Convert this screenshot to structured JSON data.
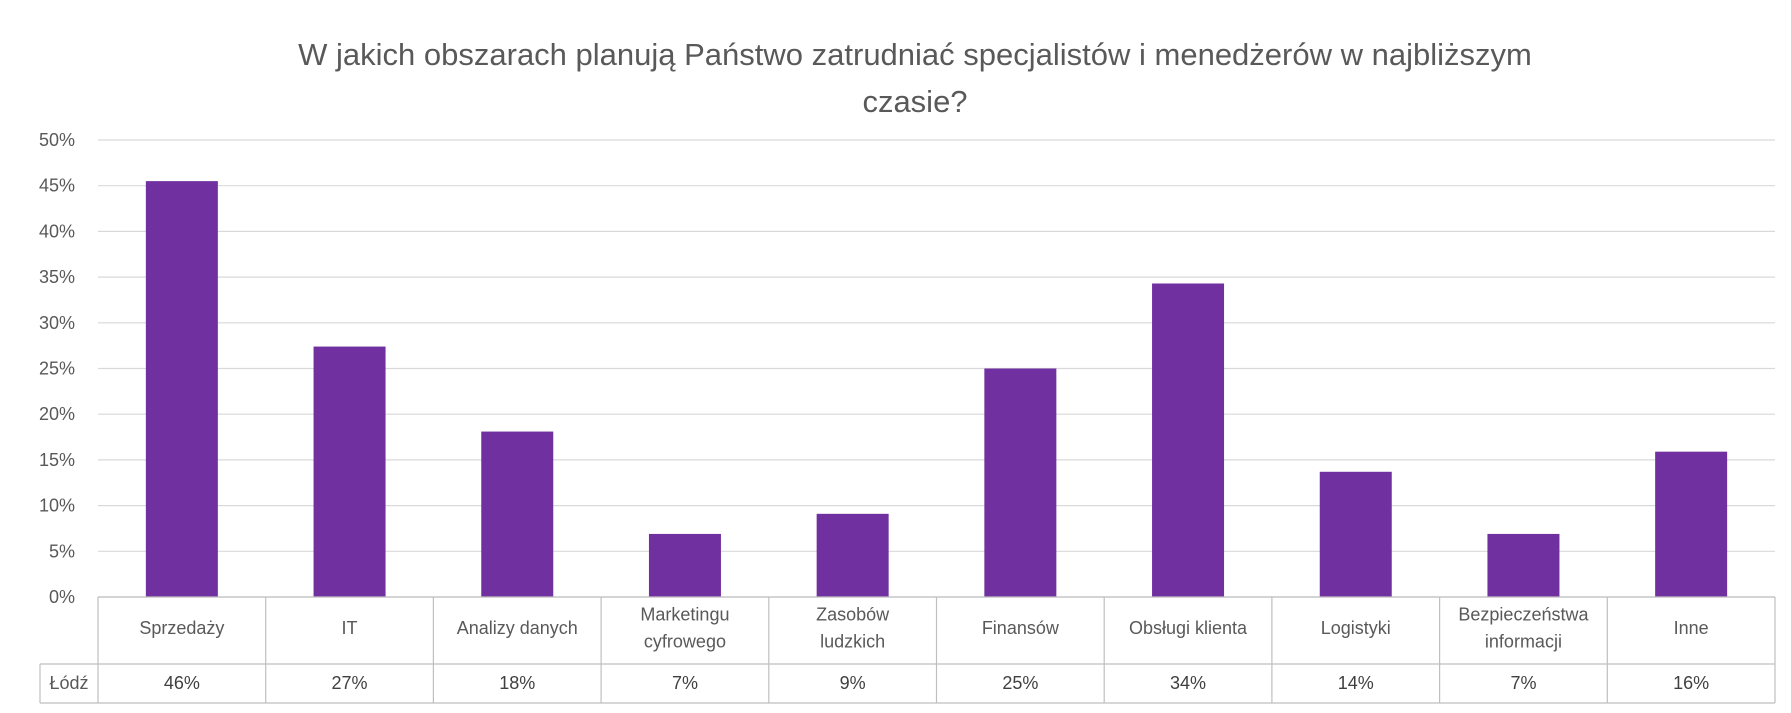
{
  "chart_data": {
    "type": "bar",
    "title_lines": [
      "W jakich obszarach planują Państwo zatrudniać specjalistów i menedżerów w najbliższym",
      "czasie?"
    ],
    "categories": [
      [
        "Sprzedaży"
      ],
      [
        "IT"
      ],
      [
        "Analizy danych"
      ],
      [
        "Marketingu",
        "cyfrowego"
      ],
      [
        "Zasobów",
        "ludzkich"
      ],
      [
        "Finansów"
      ],
      [
        "Obsługi klienta"
      ],
      [
        "Logistyki"
      ],
      [
        "Bezpieczeństwa",
        "informacji"
      ],
      [
        "Inne"
      ]
    ],
    "series": [
      {
        "name": "Łódź",
        "values": [
          45.5,
          27.4,
          18.1,
          6.9,
          9.1,
          25.0,
          34.3,
          13.7,
          6.9,
          15.9
        ],
        "labels": [
          "46%",
          "27%",
          "18%",
          "7%",
          "9%",
          "25%",
          "34%",
          "14%",
          "7%",
          "16%"
        ]
      }
    ],
    "ylim": [
      0,
      50
    ],
    "yticks": [
      "0%",
      "5%",
      "10%",
      "15%",
      "20%",
      "25%",
      "30%",
      "35%",
      "40%",
      "45%",
      "50%"
    ],
    "grid": true,
    "legend": "data-table",
    "bar_color": "#7030a0"
  }
}
